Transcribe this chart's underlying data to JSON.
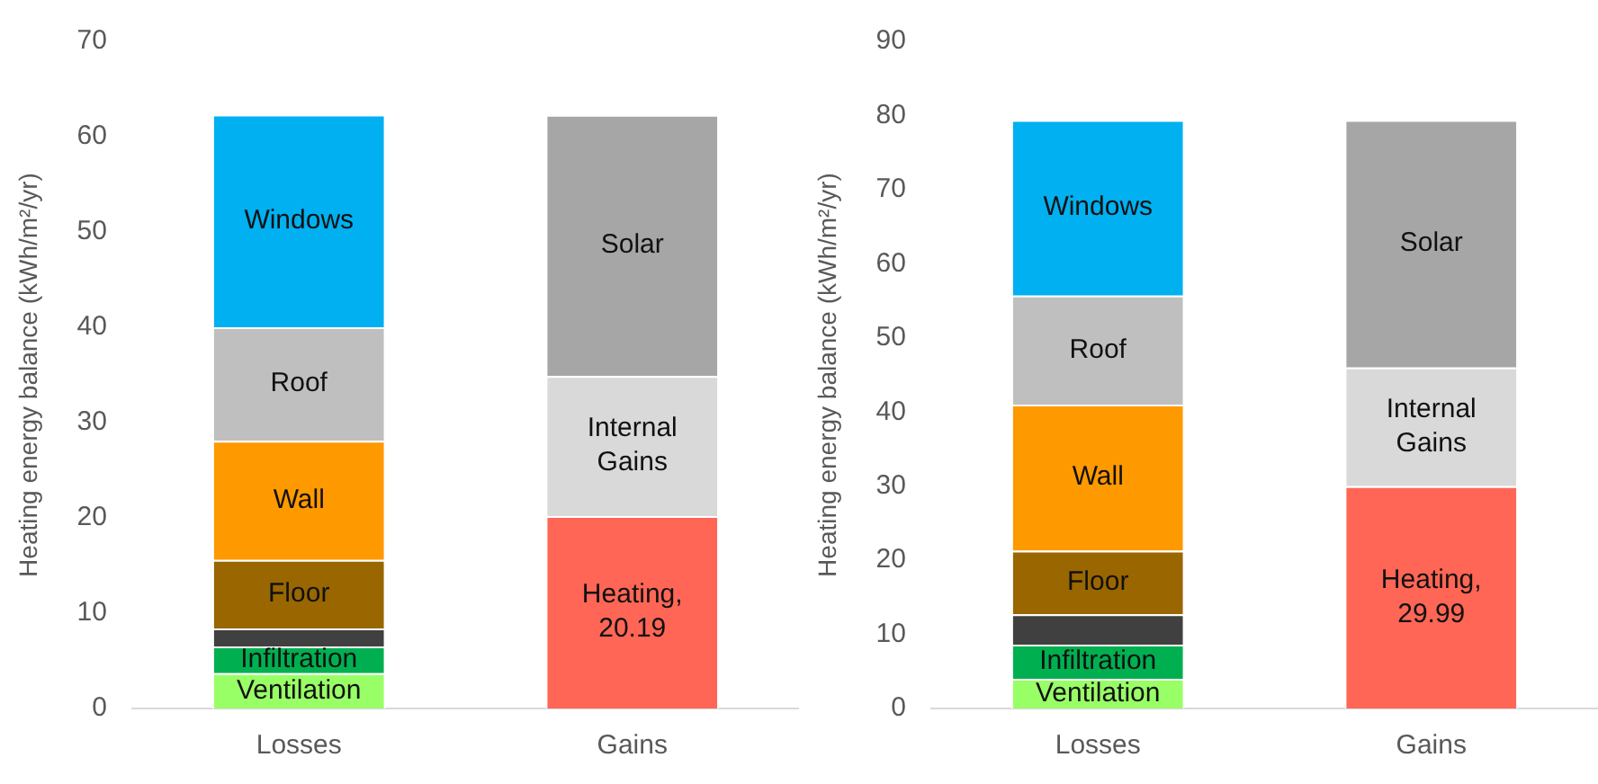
{
  "chart_data": [
    {
      "type": "bar",
      "stacked": true,
      "ylabel": "Heating energy balance (kWh/m²/yr)",
      "categories": [
        "Losses",
        "Gains"
      ],
      "ylim": [
        0,
        70
      ],
      "yticks": [
        0,
        10,
        20,
        30,
        40,
        50,
        60,
        70
      ],
      "grid": false,
      "legend": false,
      "series": [
        {
          "name": "Ventilation",
          "color": "#99ff66",
          "values": [
            3.7,
            null
          ]
        },
        {
          "name": "Infiltration",
          "color": "#00b050",
          "values": [
            2.8,
            null
          ]
        },
        {
          "color": "#404040",
          "values": [
            1.9,
            null
          ]
        },
        {
          "name": "Floor",
          "color": "#996600",
          "values": [
            7.2,
            null
          ]
        },
        {
          "name": "Wall",
          "color": "#ff9900",
          "values": [
            12.5,
            null
          ]
        },
        {
          "name": "Roof",
          "color": "#bfbfbf",
          "values": [
            11.9,
            null
          ]
        },
        {
          "name": "Windows",
          "color": "#00b0f0",
          "values": [
            22.3,
            null
          ]
        },
        {
          "name": "Heating,",
          "color": "#ff6655",
          "values": [
            null,
            20.19
          ],
          "value_labels": [
            null,
            "20.19"
          ]
        },
        {
          "name": "Internal Gains",
          "color": "#d9d9d9",
          "values": [
            null,
            14.7
          ]
        },
        {
          "name": "Solar",
          "color": "#a6a6a6",
          "values": [
            null,
            27.4
          ]
        }
      ]
    },
    {
      "type": "bar",
      "stacked": true,
      "ylabel": "Heating energy balance (kWh/m²/yr)",
      "categories": [
        "Losses",
        "Gains"
      ],
      "ylim": [
        0,
        90
      ],
      "yticks": [
        0,
        10,
        20,
        30,
        40,
        50,
        60,
        70,
        80,
        90
      ],
      "grid": false,
      "legend": false,
      "series": [
        {
          "name": "Ventilation",
          "color": "#99ff66",
          "values": [
            4.0,
            null
          ]
        },
        {
          "name": "Infiltration",
          "color": "#00b050",
          "values": [
            4.6,
            null
          ]
        },
        {
          "color": "#404040",
          "values": [
            4.1,
            null
          ]
        },
        {
          "name": "Floor",
          "color": "#996600",
          "values": [
            8.6,
            null
          ]
        },
        {
          "name": "Wall",
          "color": "#ff9900",
          "values": [
            19.7,
            null
          ]
        },
        {
          "name": "Roof",
          "color": "#bfbfbf",
          "values": [
            14.7,
            null
          ]
        },
        {
          "name": "Windows",
          "color": "#00b0f0",
          "values": [
            23.7,
            null
          ]
        },
        {
          "name": "Heating,",
          "color": "#ff6655",
          "values": [
            null,
            29.99
          ],
          "value_labels": [
            null,
            "29.99"
          ]
        },
        {
          "name": "Internal Gains",
          "color": "#d9d9d9",
          "values": [
            null,
            16.0
          ]
        },
        {
          "name": "Solar",
          "color": "#a6a6a6",
          "values": [
            null,
            33.4
          ]
        }
      ]
    }
  ]
}
